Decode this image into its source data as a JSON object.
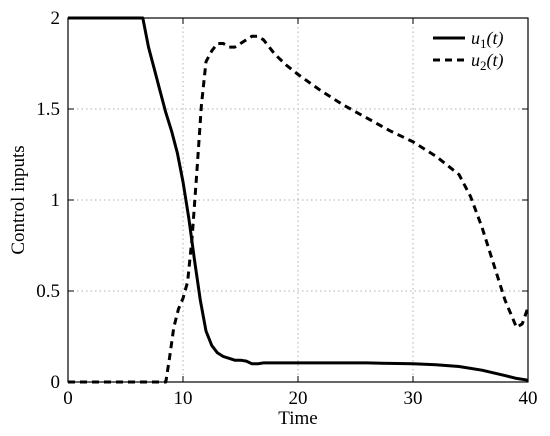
{
  "chart_data": {
    "type": "line",
    "title": "",
    "xlabel": "Time",
    "ylabel": "Control inputs",
    "xlim": [
      0,
      40
    ],
    "ylim": [
      0,
      2
    ],
    "x_ticks": [
      0,
      10,
      20,
      30,
      40
    ],
    "x_tick_labels": [
      "0",
      "10",
      "20",
      "30",
      "40"
    ],
    "y_ticks": [
      0,
      0.5,
      1,
      1.5,
      2
    ],
    "y_tick_labels": [
      "0",
      "0.5",
      "1",
      "1.5",
      "2"
    ],
    "grid": true,
    "grid_style": "dotted",
    "legend_position": "top-right",
    "colors": {
      "line": "#000000",
      "grid": "#b0b0b0",
      "background": "#ffffff"
    },
    "series": [
      {
        "name": "u1(t)",
        "legend_base": "u",
        "legend_sub": "1",
        "legend_arg": "(t)",
        "style": "solid",
        "x": [
          0,
          2,
          4,
          6.5,
          7,
          7.5,
          8,
          8.5,
          9,
          9.5,
          10,
          10.5,
          11,
          11.5,
          12,
          12.5,
          13,
          13.5,
          14,
          14.5,
          15,
          15.5,
          16,
          16.5,
          17,
          18,
          20,
          22,
          24,
          26,
          28,
          30,
          32,
          34,
          36,
          38,
          39,
          40
        ],
        "y": [
          2,
          2,
          2,
          2,
          1.84,
          1.72,
          1.6,
          1.48,
          1.38,
          1.26,
          1.1,
          0.9,
          0.67,
          0.45,
          0.28,
          0.2,
          0.16,
          0.14,
          0.13,
          0.12,
          0.12,
          0.115,
          0.1,
          0.1,
          0.105,
          0.105,
          0.105,
          0.105,
          0.105,
          0.105,
          0.102,
          0.1,
          0.095,
          0.085,
          0.065,
          0.035,
          0.02,
          0.01
        ]
      },
      {
        "name": "u2(t)",
        "legend_base": "u",
        "legend_sub": "2",
        "legend_arg": "(t)",
        "style": "dashed",
        "x": [
          0,
          4,
          8.5,
          8.8,
          9.2,
          9.6,
          10,
          10.4,
          10.8,
          11.2,
          11.6,
          12,
          12.5,
          13,
          13.5,
          14,
          14.5,
          15,
          15.5,
          16,
          16.5,
          17,
          18,
          19,
          20,
          22,
          24,
          26,
          28,
          30,
          32,
          34,
          35,
          36,
          37,
          38,
          39,
          39.5,
          40
        ],
        "y": [
          0,
          0,
          0,
          0.12,
          0.3,
          0.4,
          0.46,
          0.55,
          0.8,
          1.15,
          1.52,
          1.76,
          1.82,
          1.86,
          1.86,
          1.84,
          1.84,
          1.86,
          1.88,
          1.9,
          1.9,
          1.88,
          1.8,
          1.74,
          1.69,
          1.6,
          1.52,
          1.45,
          1.38,
          1.32,
          1.24,
          1.14,
          1.02,
          0.85,
          0.65,
          0.45,
          0.3,
          0.32,
          0.41
        ]
      }
    ]
  }
}
